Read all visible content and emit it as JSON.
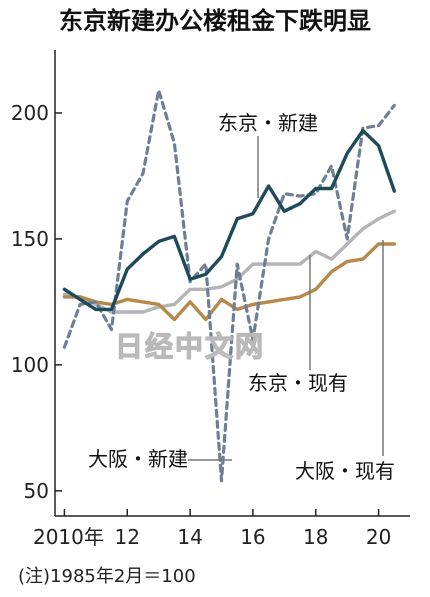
{
  "title": "东京新建办公楼租金下跌明显",
  "note": "(注)1985年2月＝100",
  "watermark": "日经中文网",
  "chart_data": {
    "type": "line",
    "title": "东京新建办公楼租金下跌明显",
    "xlabel": "",
    "ylabel": "",
    "x_tick_labels": [
      "2010年",
      "12",
      "14",
      "16",
      "18",
      "20"
    ],
    "x_ticks": [
      2010,
      2012,
      2014,
      2016,
      2018,
      2020
    ],
    "y_ticks": [
      50,
      100,
      150,
      200
    ],
    "xlim": [
      2009.7,
      2021.0
    ],
    "ylim": [
      40,
      225
    ],
    "grid": false,
    "series": [
      {
        "name": "东京・新建",
        "color": "#1e4a5c",
        "style": "solid",
        "x": [
          2010.0,
          2010.5,
          2011.0,
          2011.5,
          2012.0,
          2012.5,
          2013.0,
          2013.5,
          2014.0,
          2014.5,
          2015.0,
          2015.5,
          2016.0,
          2016.5,
          2017.0,
          2017.5,
          2018.0,
          2018.5,
          2019.0,
          2019.5,
          2020.0,
          2020.5
        ],
        "values": [
          130,
          126,
          122,
          122,
          138,
          144,
          149,
          151,
          134,
          136,
          143,
          158,
          160,
          171,
          161,
          164,
          170,
          170,
          184,
          193,
          187,
          169
        ]
      },
      {
        "name": "东京・现有",
        "color": "#b3b3b8",
        "style": "solid",
        "x": [
          2010.0,
          2010.5,
          2011.0,
          2011.5,
          2012.0,
          2012.5,
          2013.0,
          2013.5,
          2014.0,
          2014.5,
          2015.0,
          2015.5,
          2016.0,
          2016.5,
          2017.0,
          2017.5,
          2018.0,
          2018.5,
          2019.0,
          2019.5,
          2020.0,
          2020.5
        ],
        "values": [
          128,
          127,
          124,
          121,
          121,
          121,
          123,
          124,
          130,
          130,
          131,
          134,
          140,
          140,
          140,
          140,
          145,
          142,
          148,
          154,
          158,
          161
        ]
      },
      {
        "name": "大阪・新建",
        "color": "#6e7f95",
        "style": "dashed",
        "x": [
          2010.0,
          2010.5,
          2011.0,
          2011.5,
          2012.0,
          2012.5,
          2013.0,
          2013.5,
          2014.0,
          2014.5,
          2015.0,
          2015.5,
          2016.0,
          2016.5,
          2017.0,
          2017.5,
          2018.0,
          2018.5,
          2019.0,
          2019.5,
          2020.0,
          2020.5
        ],
        "values": [
          107,
          124,
          125,
          114,
          165,
          176,
          209,
          188,
          133,
          140,
          54,
          140,
          110,
          150,
          168,
          167,
          168,
          179,
          150,
          194,
          195,
          203
        ]
      },
      {
        "name": "大阪・现有",
        "color": "#b5894a",
        "style": "solid",
        "x": [
          2010.0,
          2010.5,
          2011.0,
          2011.5,
          2012.0,
          2012.5,
          2013.0,
          2013.5,
          2014.0,
          2014.5,
          2015.0,
          2015.5,
          2016.0,
          2016.5,
          2017.0,
          2017.5,
          2018.0,
          2018.5,
          2019.0,
          2019.5,
          2020.0,
          2020.5
        ],
        "values": [
          127,
          127,
          125,
          124,
          126,
          125,
          124,
          118,
          125,
          118,
          126,
          122,
          124,
          125,
          126,
          127,
          130,
          137,
          141,
          142,
          148,
          148
        ]
      }
    ]
  }
}
